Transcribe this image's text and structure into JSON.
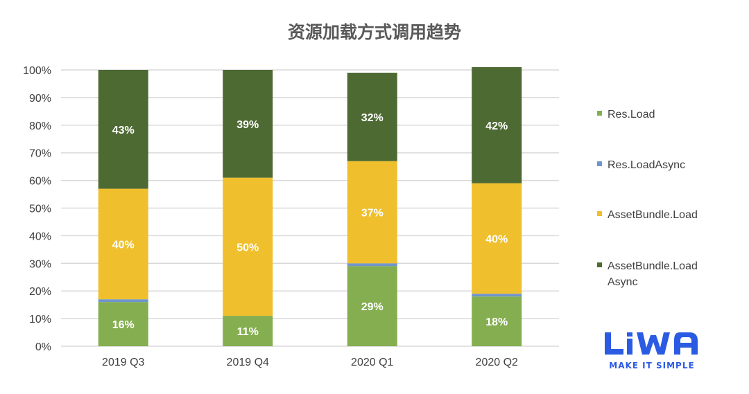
{
  "colors": {
    "res_load": "#84ae4f",
    "res_load_async": "#6f95cc",
    "assetbundle_load": "#efbf2d",
    "assetbundle_load_async": "#4e6a33",
    "grid": "#d9d9d9",
    "text": "#404040",
    "title": "#595959",
    "logo_blue": "#2b5be3"
  },
  "logo": {
    "wordmark": "LiWA",
    "tagline": "MAKE IT SIMPLE"
  },
  "chart_data": {
    "type": "bar",
    "stacked": true,
    "percent_stacked": true,
    "title": "资源加载方式调用趋势",
    "xlabel": "",
    "ylabel": "",
    "ylim": [
      0,
      100
    ],
    "yticks": [
      "0%",
      "10%",
      "20%",
      "30%",
      "40%",
      "50%",
      "60%",
      "70%",
      "80%",
      "90%",
      "100%"
    ],
    "grid": true,
    "legend_position": "right",
    "categories": [
      "2019 Q3",
      "2019 Q4",
      "2020 Q1",
      "2020 Q2"
    ],
    "series": [
      {
        "name": "Res.Load",
        "color_key": "res_load",
        "values": [
          16,
          11,
          29,
          18
        ],
        "labels": [
          "16%",
          "11%",
          "29%",
          "18%"
        ]
      },
      {
        "name": "Res.LoadAsync",
        "color_key": "res_load_async",
        "values": [
          1,
          0,
          1,
          1
        ],
        "labels": [
          "",
          "",
          "",
          ""
        ]
      },
      {
        "name": "AssetBundle.Load",
        "color_key": "assetbundle_load",
        "values": [
          40,
          50,
          37,
          40
        ],
        "labels": [
          "40%",
          "50%",
          "37%",
          "40%"
        ]
      },
      {
        "name": "AssetBundle.Load Async",
        "color_key": "assetbundle_load_async",
        "values": [
          43,
          39,
          32,
          42
        ],
        "labels": [
          "43%",
          "39%",
          "32%",
          "42%"
        ]
      }
    ]
  }
}
